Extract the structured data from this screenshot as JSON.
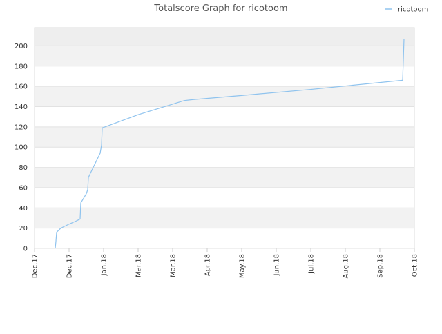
{
  "chart_data": {
    "type": "line",
    "title": "Totalscore Graph for ricotoom",
    "x": [
      0.6,
      0.62,
      0.64,
      0.76,
      1.0,
      1.2,
      1.32,
      1.34,
      1.5,
      1.54,
      1.56,
      1.6,
      1.9,
      1.94,
      1.96,
      3.0,
      4.34,
      4.6,
      6.0,
      8.0,
      10.66,
      10.68,
      10.7
    ],
    "series": [
      {
        "name": "ricotoom",
        "color": "#8fc3ee",
        "values": [
          0,
          7,
          16,
          20,
          24,
          27,
          29,
          45,
          54,
          58,
          70,
          73,
          94,
          102,
          119,
          132,
          146,
          147,
          151,
          157,
          166,
          186,
          207
        ]
      }
    ],
    "xlim": [
      0,
      11
    ],
    "xticks": [
      {
        "value": 0,
        "label": "Dec.17"
      },
      {
        "value": 1,
        "label": "Dec.17"
      },
      {
        "value": 2,
        "label": "Jan.18"
      },
      {
        "value": 3,
        "label": "Mar.18"
      },
      {
        "value": 4,
        "label": "Mar.18"
      },
      {
        "value": 5,
        "label": "Apr.18"
      },
      {
        "value": 6,
        "label": "May.18"
      },
      {
        "value": 7,
        "label": "Jun.18"
      },
      {
        "value": 8,
        "label": "Jul.18"
      },
      {
        "value": 9,
        "label": "Aug.18"
      },
      {
        "value": 10,
        "label": "Sep.18"
      },
      {
        "value": 11,
        "label": "Oct.18"
      }
    ],
    "ylim": [
      0,
      218
    ],
    "yticks": [
      0,
      20,
      40,
      60,
      80,
      100,
      120,
      140,
      160,
      180,
      200
    ],
    "grid": true,
    "legend": "top-right"
  }
}
